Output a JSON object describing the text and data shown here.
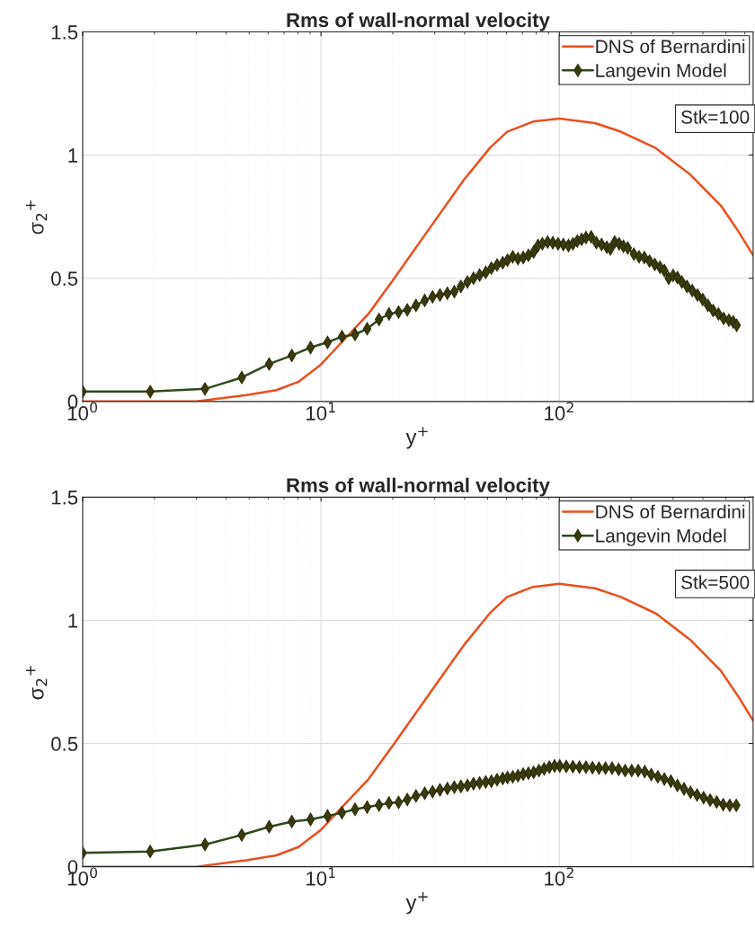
{
  "chart_data": [
    {
      "type": "line",
      "title": "Rms of wall-normal velocity",
      "xlabel": "y$^{+}$",
      "ylabel": "σ$_{2}$$^{+}$",
      "log": "x",
      "grid": true,
      "legend": "top right",
      "xlim": [
        1,
        650
      ],
      "xticks": [
        {
          "value": 1,
          "label": "10$^{0}$"
        },
        {
          "value": 10,
          "label": "10$^{1}$"
        },
        {
          "value": 100,
          "label": "10$^{2}$"
        }
      ],
      "ylim": [
        0,
        1.5
      ],
      "yticks": [
        0,
        0.5,
        1,
        1.5
      ],
      "annotations": [
        "Stk=100"
      ],
      "series": [
        {
          "name": "DNS of Bernardini",
          "color": "#ea4f1f",
          "marker": "none",
          "x": [
            1,
            2,
            3,
            4.85,
            6.5,
            8.04,
            10,
            12.2,
            15.8,
            20.3,
            28.4,
            39.8,
            51.2,
            60.4,
            77.6,
            100,
            141,
            181,
            254,
            355,
            476,
            564,
            650
          ],
          "values": [
            0,
            0,
            0,
            0.026,
            0.046,
            0.08,
            0.15,
            0.24,
            0.355,
            0.5,
            0.7,
            0.9,
            1.03,
            1.095,
            1.136,
            1.148,
            1.13,
            1.095,
            1.028,
            0.92,
            0.795,
            0.69,
            0.593
          ]
        },
        {
          "name": "Langevin Model",
          "color": "#2e4a1c",
          "marker": "diamond",
          "x": [
            1,
            1.92,
            3.26,
            4.65,
            6.06,
            7.54,
            9.04,
            10.65,
            12.24,
            13.89,
            15.62,
            17.51,
            19.28,
            21.16,
            23.01,
            25.03,
            27.23,
            29.38,
            31.56,
            33.9,
            36.26,
            38.63,
            41.15,
            43.64,
            46.29,
            49.09,
            51.85,
            54.78,
            57.86,
            60.6,
            63.74,
            67.04,
            70.51,
            74.17,
            78.01,
            81.37,
            84.87,
            89.26,
            93.89,
            98.74,
            103.9,
            109.2,
            114,
            118.9,
            124,
            129.3,
            136,
            143,
            150.4,
            158.2,
            163.7,
            170.7,
            178.1,
            185.7,
            193.6,
            205.4,
            216.1,
            227.3,
            239,
            251.4,
            264.4,
            275.8,
            287.7,
            300,
            312.9,
            326.4,
            343.3,
            361.1,
            379.8,
            399.5,
            420.2,
            441.9,
            464.9,
            488.9,
            514.3,
            536.4,
            554.8
          ],
          "values": [
            0.04,
            0.04,
            0.051,
            0.097,
            0.152,
            0.187,
            0.219,
            0.24,
            0.263,
            0.272,
            0.295,
            0.333,
            0.355,
            0.363,
            0.372,
            0.39,
            0.41,
            0.425,
            0.432,
            0.439,
            0.446,
            0.467,
            0.485,
            0.5,
            0.513,
            0.524,
            0.541,
            0.554,
            0.563,
            0.573,
            0.587,
            0.58,
            0.584,
            0.593,
            0.607,
            0.633,
            0.64,
            0.647,
            0.644,
            0.64,
            0.637,
            0.633,
            0.64,
            0.651,
            0.658,
            0.665,
            0.668,
            0.644,
            0.637,
            0.626,
            0.619,
            0.647,
            0.64,
            0.63,
            0.623,
            0.598,
            0.587,
            0.584,
            0.57,
            0.556,
            0.545,
            0.531,
            0.5,
            0.511,
            0.503,
            0.485,
            0.467,
            0.45,
            0.432,
            0.414,
            0.39,
            0.369,
            0.355,
            0.337,
            0.33,
            0.323,
            0.309
          ]
        }
      ]
    },
    {
      "type": "line",
      "title": "Rms of wall-normal velocity",
      "xlabel": "y$^{+}$",
      "ylabel": "σ$_{2}$$^{+}$",
      "log": "x",
      "grid": true,
      "legend": "top right",
      "xlim": [
        1,
        650
      ],
      "xticks": [
        {
          "value": 1,
          "label": "10$^{0}$"
        },
        {
          "value": 10,
          "label": "10$^{1}$"
        },
        {
          "value": 100,
          "label": "10$^{2}$"
        }
      ],
      "ylim": [
        0,
        1.5
      ],
      "yticks": [
        0,
        0.5,
        1,
        1.5
      ],
      "annotations": [
        "Stk=500"
      ],
      "series": [
        {
          "name": "DNS of Bernardini",
          "color": "#ea4f1f",
          "marker": "none",
          "x": [
            1,
            2,
            3,
            4.85,
            6.5,
            8.04,
            10,
            12.2,
            15.8,
            20.3,
            28.4,
            39.8,
            51.2,
            60.4,
            77.6,
            100,
            141,
            181,
            254,
            355,
            476,
            564,
            650
          ],
          "values": [
            0,
            0,
            0,
            0.026,
            0.046,
            0.08,
            0.15,
            0.24,
            0.355,
            0.5,
            0.7,
            0.9,
            1.03,
            1.095,
            1.136,
            1.148,
            1.13,
            1.095,
            1.028,
            0.92,
            0.795,
            0.69,
            0.593
          ]
        },
        {
          "name": "Langevin Model",
          "color": "#2e4a1c",
          "marker": "diamond",
          "x": [
            1,
            1.92,
            3.26,
            4.65,
            6.06,
            7.54,
            9.04,
            10.65,
            12.24,
            13.89,
            15.62,
            17.51,
            19.28,
            21.16,
            23.01,
            25.03,
            27.23,
            29.38,
            31.56,
            33.9,
            36.26,
            38.63,
            41.15,
            43.64,
            46.29,
            49.09,
            51.85,
            54.78,
            57.86,
            60.6,
            63.74,
            67.04,
            70.51,
            74.17,
            78.01,
            82.06,
            86.3,
            90.78,
            95.48,
            100.4,
            106.9,
            114,
            121.4,
            129.3,
            137.7,
            146.7,
            156.2,
            166.4,
            177.3,
            188.8,
            201.2,
            214.2,
            228.2,
            243,
            258.9,
            275.8,
            293.8,
            312.9,
            333.4,
            355.1,
            378.2,
            402.9,
            429.2,
            457.1,
            486.9,
            518.6,
            552.4
          ],
          "values": [
            0.056,
            0.062,
            0.09,
            0.129,
            0.162,
            0.183,
            0.192,
            0.206,
            0.219,
            0.233,
            0.242,
            0.25,
            0.259,
            0.261,
            0.273,
            0.287,
            0.298,
            0.305,
            0.312,
            0.317,
            0.323,
            0.326,
            0.33,
            0.337,
            0.34,
            0.344,
            0.347,
            0.353,
            0.358,
            0.362,
            0.365,
            0.369,
            0.376,
            0.379,
            0.383,
            0.39,
            0.397,
            0.404,
            0.409,
            0.409,
            0.407,
            0.406,
            0.404,
            0.404,
            0.402,
            0.4,
            0.4,
            0.4,
            0.395,
            0.39,
            0.39,
            0.39,
            0.386,
            0.374,
            0.365,
            0.356,
            0.347,
            0.33,
            0.316,
            0.302,
            0.291,
            0.28,
            0.27,
            0.263,
            0.252,
            0.249,
            0.249
          ]
        }
      ]
    }
  ]
}
